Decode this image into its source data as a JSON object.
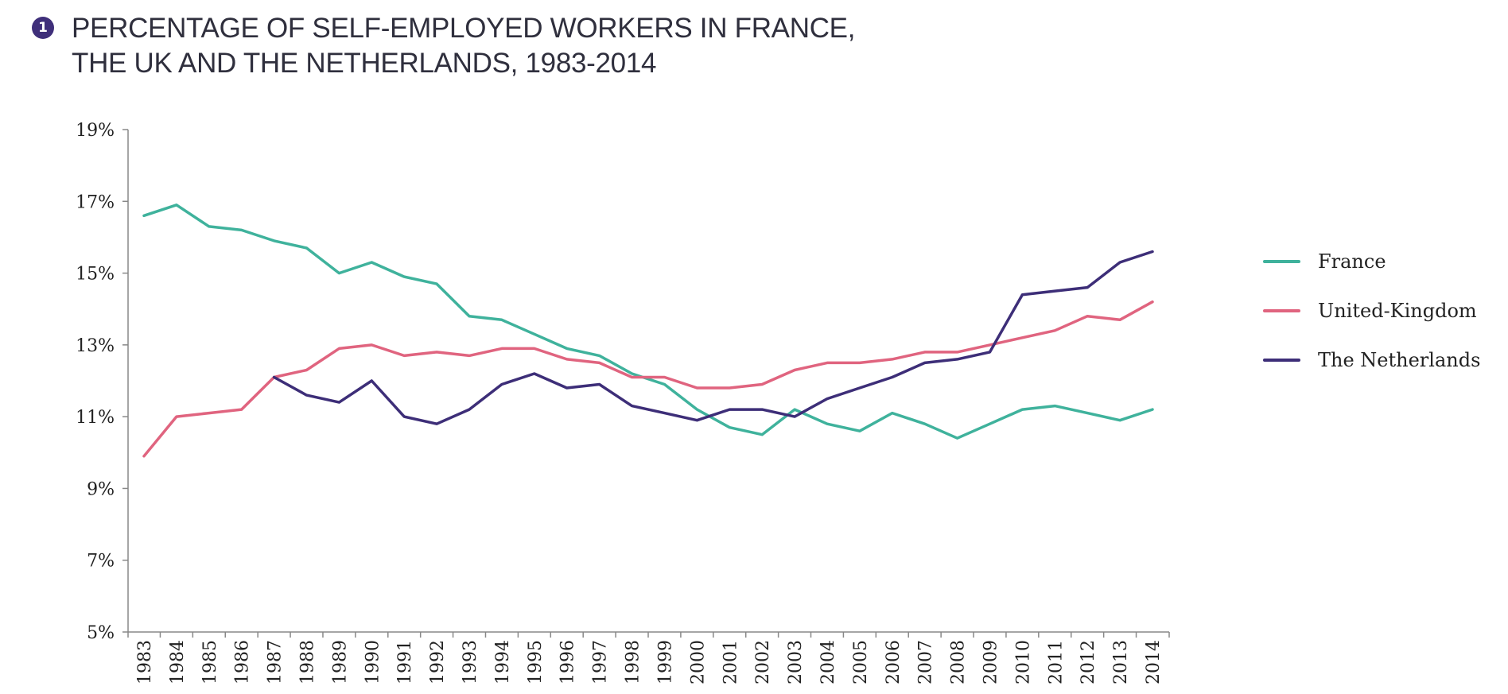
{
  "title": {
    "badge": "1",
    "line1": "PERCENTAGE OF SELF-EMPLOYED WORKERS IN FRANCE,",
    "line2": "THE UK AND THE NETHERLANDS, 1983-2014"
  },
  "chart_data": {
    "type": "line",
    "title": "PERCENTAGE OF SELF-EMPLOYED WORKERS IN FRANCE, THE UK AND THE NETHERLANDS, 1983-2014",
    "x": [
      "1983",
      "1984",
      "1985",
      "1986",
      "1987",
      "1988",
      "1989",
      "1990",
      "1991",
      "1992",
      "1993",
      "1994",
      "1995",
      "1996",
      "1997",
      "1998",
      "1999",
      "2000",
      "2001",
      "2002",
      "2003",
      "2004",
      "2005",
      "2006",
      "2007",
      "2008",
      "2009",
      "2010",
      "2011",
      "2012",
      "2013",
      "2014"
    ],
    "yticks": [
      "5%",
      "7%",
      "9%",
      "11%",
      "13%",
      "15%",
      "17%",
      "19%"
    ],
    "ylim": [
      5,
      19
    ],
    "legend_position": "right",
    "series": [
      {
        "name": "France",
        "color": "#3fb29c",
        "values": [
          16.6,
          16.9,
          16.3,
          16.2,
          15.9,
          15.7,
          15.0,
          15.3,
          14.9,
          14.7,
          13.8,
          13.7,
          13.3,
          12.9,
          12.7,
          12.2,
          11.9,
          11.2,
          10.7,
          10.5,
          11.2,
          10.8,
          10.6,
          11.1,
          10.8,
          10.4,
          10.8,
          11.2,
          11.3,
          11.1,
          10.9,
          11.2
        ]
      },
      {
        "name": "United-Kingdom",
        "color": "#e0647f",
        "values": [
          9.9,
          11.0,
          11.1,
          11.2,
          12.1,
          12.3,
          12.9,
          13.0,
          12.7,
          12.8,
          12.7,
          12.9,
          12.9,
          12.6,
          12.5,
          12.1,
          12.1,
          11.8,
          11.8,
          11.9,
          12.3,
          12.5,
          12.5,
          12.6,
          12.8,
          12.8,
          13.0,
          13.2,
          13.4,
          13.8,
          13.7,
          14.2
        ]
      },
      {
        "name": "The Netherlands",
        "color": "#3d2e78",
        "values": [
          null,
          null,
          null,
          null,
          12.1,
          11.6,
          11.4,
          12.0,
          11.0,
          10.8,
          11.2,
          11.9,
          12.2,
          11.8,
          11.9,
          11.3,
          11.1,
          10.9,
          11.2,
          11.2,
          11.0,
          11.5,
          11.8,
          12.1,
          12.5,
          12.6,
          12.8,
          14.4,
          14.5,
          14.6,
          15.3,
          15.6
        ]
      }
    ]
  }
}
